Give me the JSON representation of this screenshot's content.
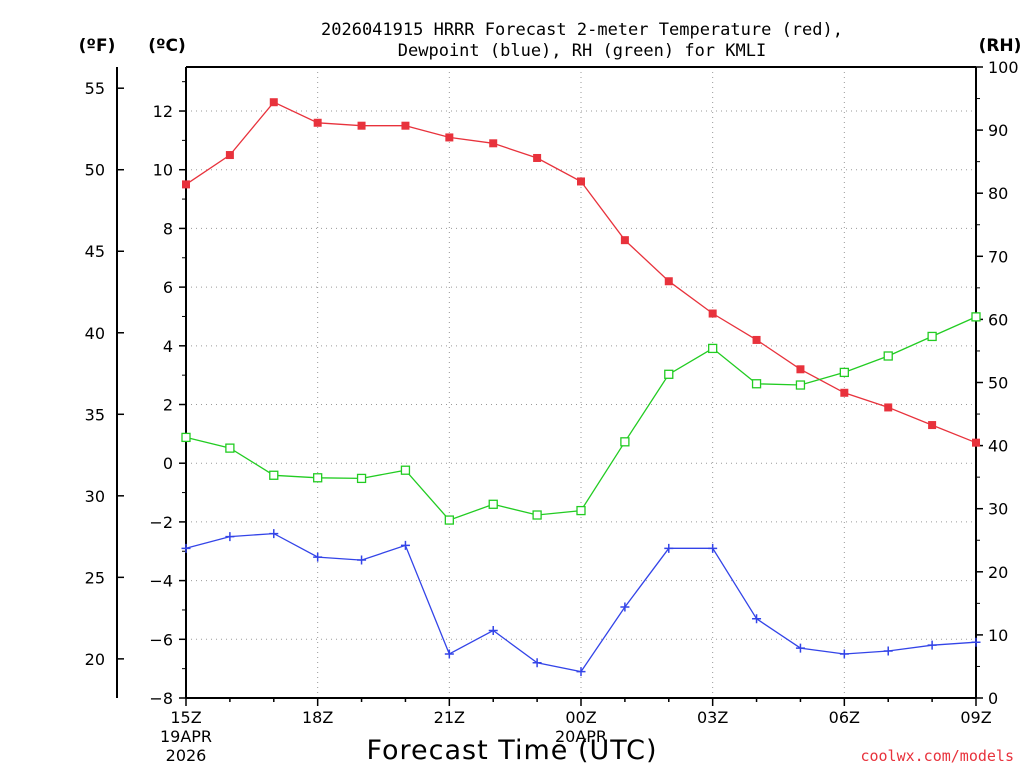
{
  "chart_data": {
    "type": "line",
    "title": [
      "2026041915 HRRR Forecast 2-meter Temperature (red),",
      "Dewpoint (blue), RH (green) for KMLI"
    ],
    "xlabel": "Forecast Time (UTC)",
    "units": {
      "fahrenheit": "(ºF)",
      "celsius": "(ºC)",
      "rh": "(RH)"
    },
    "credit": "coolwx.com/models",
    "x_ticks": [
      {
        "label": "15Z",
        "sub1": "19APR",
        "sub2": "2026"
      },
      {
        "label": "18Z"
      },
      {
        "label": "21Z"
      },
      {
        "label": "00Z",
        "sub1": "20APR"
      },
      {
        "label": "03Z"
      },
      {
        "label": "06Z"
      },
      {
        "label": "09Z"
      }
    ],
    "hours_axis": [
      0,
      18
    ],
    "celsius_axis": {
      "range": [
        -8,
        13.5
      ],
      "ticks": [
        -8,
        -6,
        -4,
        -2,
        0,
        2,
        4,
        6,
        8,
        10,
        12
      ]
    },
    "fahrenheit_axis": {
      "ticks": [
        20,
        25,
        30,
        35,
        40,
        45,
        50,
        55
      ]
    },
    "rh_axis": {
      "range": [
        0,
        100
      ],
      "ticks": [
        0,
        10,
        20,
        30,
        40,
        50,
        60,
        70,
        80,
        90,
        100
      ]
    },
    "series": [
      {
        "name": "Temperature",
        "unit": "C",
        "color": "#e8323c",
        "marker": "filled-square",
        "values": [
          9.5,
          10.5,
          12.3,
          11.6,
          11.5,
          11.5,
          11.1,
          10.9,
          10.4,
          9.6,
          7.6,
          6.2,
          5.1,
          4.2,
          3.2,
          2.4,
          1.9,
          1.3,
          0.7
        ]
      },
      {
        "name": "Dewpoint",
        "unit": "C",
        "color": "#3344e8",
        "marker": "plus",
        "values": [
          -2.9,
          -2.5,
          -2.4,
          -3.2,
          -3.3,
          -2.8,
          -6.5,
          -5.7,
          -6.8,
          -7.1,
          -4.9,
          -2.9,
          -2.9,
          -5.3,
          -6.3,
          -6.5,
          -6.4,
          -6.2,
          -6.1
        ]
      },
      {
        "name": "RH",
        "unit": "%",
        "color": "#22cc22",
        "marker": "open-square",
        "values": [
          41.3,
          39.6,
          35.3,
          34.9,
          34.8,
          36.1,
          28.2,
          30.7,
          29.0,
          29.7,
          40.6,
          51.3,
          55.4,
          49.8,
          49.6,
          51.6,
          54.2,
          57.3,
          60.4
        ]
      }
    ]
  }
}
